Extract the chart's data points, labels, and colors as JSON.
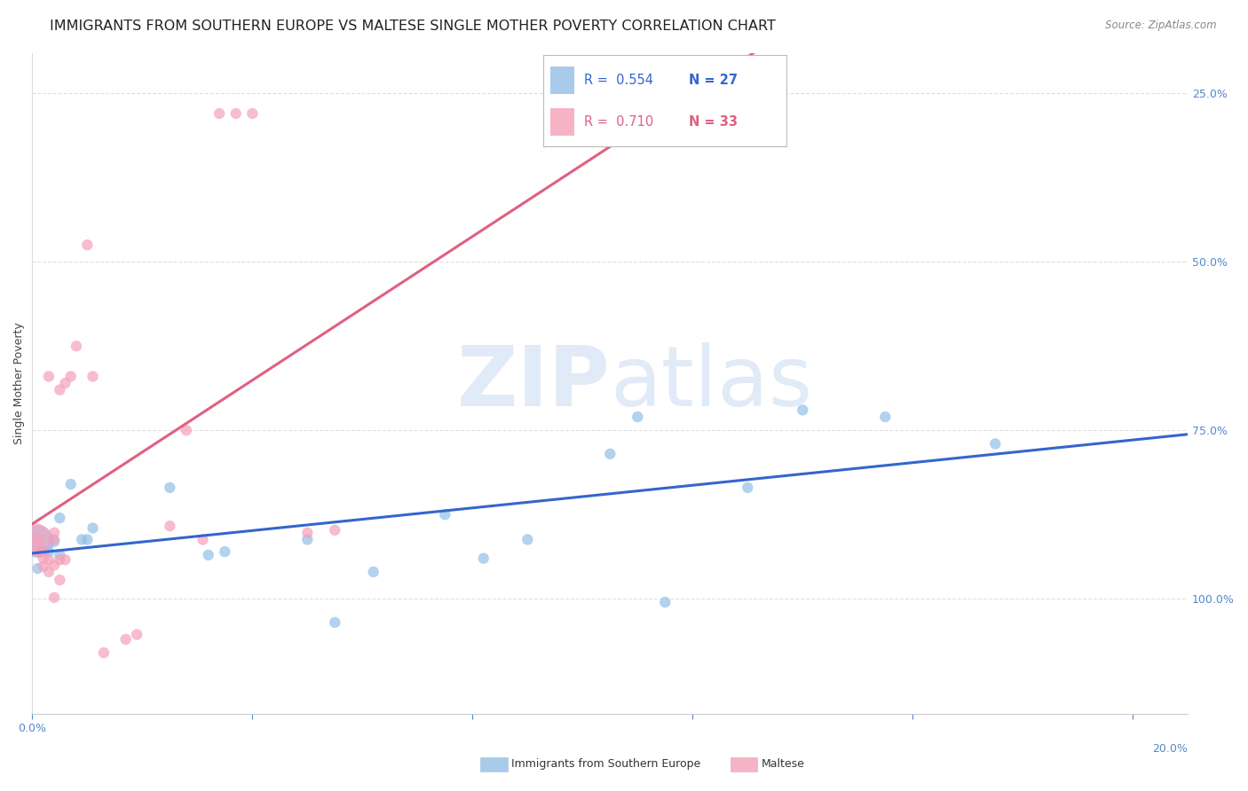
{
  "title": "IMMIGRANTS FROM SOUTHERN EUROPE VS MALTESE SINGLE MOTHER POVERTY CORRELATION CHART",
  "source": "Source: ZipAtlas.com",
  "ylabel": "Single Mother Poverty",
  "right_yticks": [
    "100.0%",
    "75.0%",
    "50.0%",
    "25.0%"
  ],
  "right_ytick_vals": [
    1.0,
    0.75,
    0.5,
    0.25
  ],
  "legend1_label": "Immigrants from Southern Europe",
  "legend2_label": "Maltese",
  "R1": 0.554,
  "N1": 27,
  "R2": 0.71,
  "N2": 33,
  "color_blue": "#92bfe8",
  "color_pink": "#f4a0b8",
  "line_blue": "#3366cc",
  "line_pink": "#e06080",
  "background": "#ffffff",
  "blue_points": [
    [
      0.001,
      0.335
    ],
    [
      0.001,
      0.295
    ],
    [
      0.002,
      0.32
    ],
    [
      0.003,
      0.32
    ],
    [
      0.004,
      0.335
    ],
    [
      0.005,
      0.37
    ],
    [
      0.005,
      0.315
    ],
    [
      0.007,
      0.42
    ],
    [
      0.009,
      0.338
    ],
    [
      0.01,
      0.338
    ],
    [
      0.011,
      0.355
    ],
    [
      0.025,
      0.415
    ],
    [
      0.032,
      0.315
    ],
    [
      0.035,
      0.32
    ],
    [
      0.05,
      0.338
    ],
    [
      0.055,
      0.215
    ],
    [
      0.062,
      0.29
    ],
    [
      0.075,
      0.375
    ],
    [
      0.082,
      0.31
    ],
    [
      0.09,
      0.338
    ],
    [
      0.105,
      0.465
    ],
    [
      0.11,
      0.52
    ],
    [
      0.115,
      0.245
    ],
    [
      0.13,
      0.415
    ],
    [
      0.14,
      0.53
    ],
    [
      0.155,
      0.52
    ],
    [
      0.175,
      0.48
    ]
  ],
  "blue_sizes": [
    700,
    80,
    80,
    80,
    80,
    80,
    80,
    80,
    80,
    80,
    80,
    80,
    80,
    80,
    80,
    80,
    80,
    80,
    80,
    80,
    80,
    80,
    80,
    80,
    80,
    80,
    80
  ],
  "pink_points": [
    [
      0.0005,
      0.338
    ],
    [
      0.001,
      0.32
    ],
    [
      0.001,
      0.338
    ],
    [
      0.0015,
      0.32
    ],
    [
      0.002,
      0.298
    ],
    [
      0.002,
      0.31
    ],
    [
      0.003,
      0.308
    ],
    [
      0.003,
      0.29
    ],
    [
      0.003,
      0.58
    ],
    [
      0.004,
      0.338
    ],
    [
      0.004,
      0.348
    ],
    [
      0.004,
      0.3
    ],
    [
      0.004,
      0.252
    ],
    [
      0.005,
      0.278
    ],
    [
      0.005,
      0.56
    ],
    [
      0.005,
      0.308
    ],
    [
      0.006,
      0.57
    ],
    [
      0.006,
      0.308
    ],
    [
      0.007,
      0.58
    ],
    [
      0.008,
      0.625
    ],
    [
      0.01,
      0.775
    ],
    [
      0.011,
      0.58
    ],
    [
      0.013,
      0.17
    ],
    [
      0.017,
      0.19
    ],
    [
      0.019,
      0.197
    ],
    [
      0.025,
      0.358
    ],
    [
      0.028,
      0.5
    ],
    [
      0.031,
      0.338
    ],
    [
      0.034,
      0.97
    ],
    [
      0.037,
      0.97
    ],
    [
      0.04,
      0.97
    ],
    [
      0.05,
      0.348
    ],
    [
      0.055,
      0.352
    ]
  ],
  "pink_sizes": [
    700,
    80,
    80,
    80,
    80,
    80,
    80,
    80,
    80,
    80,
    80,
    80,
    80,
    80,
    80,
    80,
    80,
    80,
    80,
    80,
    80,
    80,
    80,
    80,
    80,
    80,
    80,
    80,
    80,
    80,
    80,
    80,
    80
  ],
  "xlim": [
    0.0,
    0.21
  ],
  "ylim": [
    0.08,
    1.06
  ],
  "xtick_positions": [
    0.0,
    0.04,
    0.08,
    0.12,
    0.16,
    0.2
  ],
  "ytick_vals": [
    0.25,
    0.5,
    0.75,
    1.0
  ],
  "watermark": "ZIPatlas",
  "title_fontsize": 11.5,
  "axis_label_fontsize": 9,
  "tick_fontsize": 9
}
